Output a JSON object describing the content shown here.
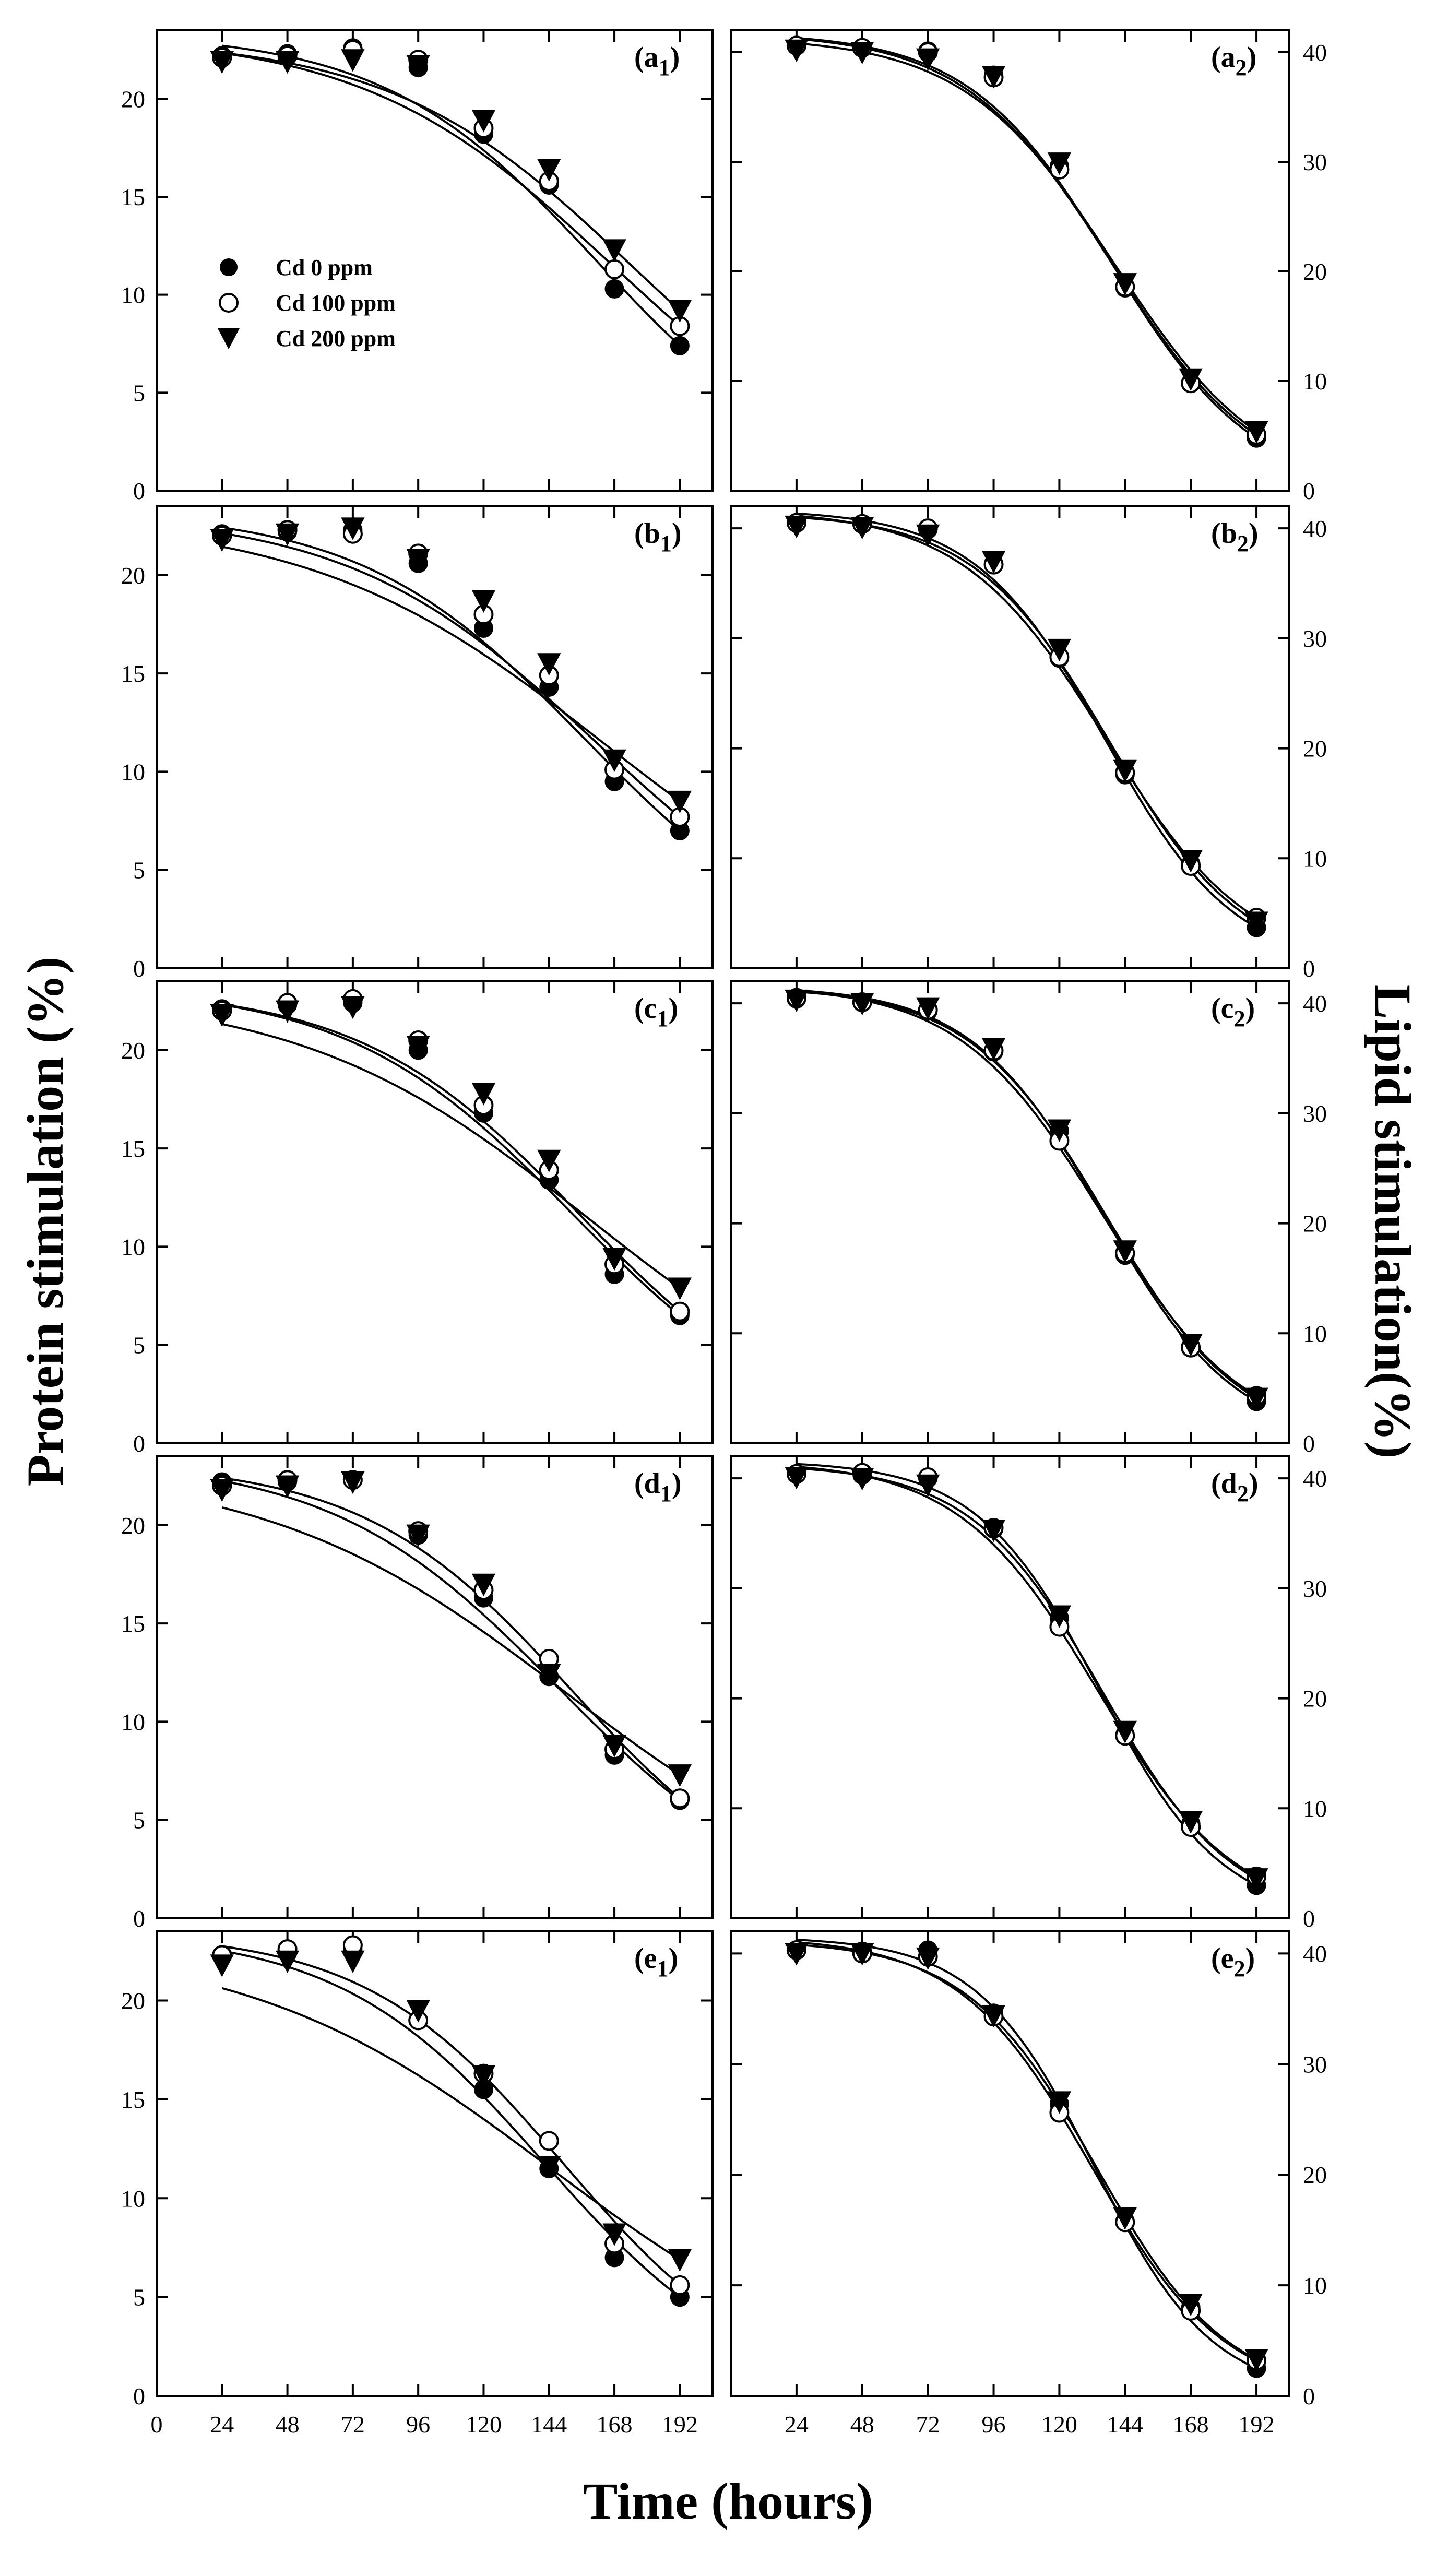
{
  "figure": {
    "y_label_left": "Protein stimulation (%)",
    "y_label_right": "Lipid stimulation(%)",
    "x_label": "Time (hours)"
  },
  "legend": {
    "entries": [
      {
        "label": "Cd 0 ppm",
        "marker": "filled-circle"
      },
      {
        "label": "Cd 100 ppm",
        "marker": "open-circle"
      },
      {
        "label": "Cd 200 ppm",
        "marker": "filled-triangle-down"
      }
    ]
  },
  "chart_data": [
    {
      "id": "a1",
      "panel_letter": "a",
      "panel_index": "1",
      "type": "scatter",
      "side": "protein",
      "xlim": [
        0,
        204
      ],
      "ylim": [
        0,
        23.5
      ],
      "x_ticks": [
        0,
        24,
        48,
        72,
        96,
        120,
        144,
        168,
        192
      ],
      "y_ticks": [
        0,
        5,
        10,
        15,
        20
      ],
      "x": [
        24,
        48,
        72,
        96,
        120,
        144,
        168,
        192
      ],
      "series": [
        {
          "name": "Cd 0 ppm",
          "values": [
            22.2,
            22.3,
            22.6,
            21.6,
            18.2,
            15.6,
            10.3,
            7.4
          ]
        },
        {
          "name": "Cd 100 ppm",
          "values": [
            22.1,
            22.2,
            22.5,
            22.0,
            18.5,
            15.8,
            11.3,
            8.4
          ]
        },
        {
          "name": "Cd 200 ppm",
          "values": [
            21.9,
            21.9,
            22.0,
            21.7,
            18.9,
            16.4,
            12.3,
            9.2
          ]
        }
      ]
    },
    {
      "id": "a2",
      "panel_letter": "a",
      "panel_index": "2",
      "type": "scatter",
      "side": "lipid",
      "xlim": [
        0,
        204
      ],
      "ylim": [
        0,
        42
      ],
      "x_ticks": [
        24,
        48,
        72,
        96,
        120,
        144,
        168,
        192
      ],
      "y_ticks": [
        0,
        10,
        20,
        30,
        40
      ],
      "x": [
        24,
        48,
        72,
        96,
        120,
        144,
        168,
        192
      ],
      "series": [
        {
          "name": "Cd 0 ppm",
          "values": [
            40.6,
            40.4,
            40.1,
            37.9,
            29.6,
            18.5,
            9.8,
            4.8
          ]
        },
        {
          "name": "Cd 100 ppm",
          "values": [
            40.6,
            40.4,
            40.0,
            37.7,
            29.3,
            18.6,
            9.8,
            5.1
          ]
        },
        {
          "name": "Cd 200 ppm",
          "values": [
            40.2,
            40.0,
            39.4,
            37.8,
            29.9,
            18.9,
            10.2,
            5.4
          ]
        }
      ]
    },
    {
      "id": "b1",
      "panel_letter": "b",
      "panel_index": "1",
      "type": "scatter",
      "side": "protein",
      "xlim": [
        0,
        204
      ],
      "ylim": [
        0,
        23.5
      ],
      "x_ticks": [
        0,
        24,
        48,
        72,
        96,
        120,
        144,
        168,
        192
      ],
      "y_ticks": [
        0,
        5,
        10,
        15,
        20
      ],
      "x": [
        24,
        48,
        72,
        96,
        120,
        144,
        168,
        192
      ],
      "series": [
        {
          "name": "Cd 0 ppm",
          "values": [
            22.1,
            22.2,
            22.3,
            20.6,
            17.3,
            14.3,
            9.5,
            7.0
          ]
        },
        {
          "name": "Cd 100 ppm",
          "values": [
            22.0,
            22.3,
            22.1,
            21.1,
            18.0,
            14.9,
            10.1,
            7.7
          ]
        },
        {
          "name": "Cd 200 ppm",
          "values": [
            21.8,
            22.1,
            22.4,
            20.8,
            18.7,
            15.5,
            10.6,
            8.5
          ]
        }
      ]
    },
    {
      "id": "b2",
      "panel_letter": "b",
      "panel_index": "2",
      "type": "scatter",
      "side": "lipid",
      "xlim": [
        0,
        204
      ],
      "ylim": [
        0,
        42
      ],
      "x_ticks": [
        24,
        48,
        72,
        96,
        120,
        144,
        168,
        192
      ],
      "y_ticks": [
        0,
        10,
        20,
        30,
        40
      ],
      "x": [
        24,
        48,
        72,
        96,
        120,
        144,
        168,
        192
      ],
      "series": [
        {
          "name": "Cd 0 ppm",
          "values": [
            40.5,
            40.4,
            39.9,
            36.8,
            28.2,
            17.6,
            9.5,
            3.7
          ]
        },
        {
          "name": "Cd 100 ppm",
          "values": [
            40.5,
            40.4,
            40.0,
            36.7,
            28.3,
            17.8,
            9.3,
            4.6
          ]
        },
        {
          "name": "Cd 200 ppm",
          "values": [
            40.2,
            40.1,
            39.4,
            37.0,
            29.0,
            18.0,
            9.8,
            4.2
          ]
        }
      ]
    },
    {
      "id": "c1",
      "panel_letter": "c",
      "panel_index": "1",
      "type": "scatter",
      "side": "protein",
      "xlim": [
        0,
        204
      ],
      "ylim": [
        0,
        23.5
      ],
      "x_ticks": [
        0,
        24,
        48,
        72,
        96,
        120,
        144,
        168,
        192
      ],
      "y_ticks": [
        0,
        5,
        10,
        15,
        20
      ],
      "x": [
        24,
        48,
        72,
        96,
        120,
        144,
        168,
        192
      ],
      "series": [
        {
          "name": "Cd 0 ppm",
          "values": [
            22.1,
            22.3,
            22.4,
            20.0,
            16.8,
            13.4,
            8.6,
            6.5
          ]
        },
        {
          "name": "Cd 100 ppm",
          "values": [
            22.0,
            22.4,
            22.6,
            20.5,
            17.2,
            13.9,
            9.1,
            6.7
          ]
        },
        {
          "name": "Cd 200 ppm",
          "values": [
            21.8,
            22.0,
            22.2,
            20.2,
            17.8,
            14.4,
            9.4,
            7.9
          ]
        }
      ]
    },
    {
      "id": "c2",
      "panel_letter": "c",
      "panel_index": "2",
      "type": "scatter",
      "side": "lipid",
      "xlim": [
        0,
        204
      ],
      "ylim": [
        0,
        42
      ],
      "x_ticks": [
        24,
        48,
        72,
        96,
        120,
        144,
        168,
        192
      ],
      "y_ticks": [
        0,
        10,
        20,
        30,
        40
      ],
      "x": [
        24,
        48,
        72,
        96,
        120,
        144,
        168,
        192
      ],
      "series": [
        {
          "name": "Cd 0 ppm",
          "values": [
            40.4,
            40.1,
            39.3,
            35.6,
            28.4,
            17.1,
            8.8,
            3.8
          ]
        },
        {
          "name": "Cd 100 ppm",
          "values": [
            40.5,
            40.1,
            39.4,
            35.7,
            27.5,
            17.3,
            8.7,
            4.3
          ]
        },
        {
          "name": "Cd 200 ppm",
          "values": [
            40.3,
            40.0,
            39.6,
            35.9,
            28.5,
            17.5,
            9.0,
            4.1
          ]
        }
      ]
    },
    {
      "id": "d1",
      "panel_letter": "d",
      "panel_index": "1",
      "type": "scatter",
      "side": "protein",
      "xlim": [
        0,
        204
      ],
      "ylim": [
        0,
        23.5
      ],
      "x_ticks": [
        0,
        24,
        48,
        72,
        96,
        120,
        144,
        168,
        192
      ],
      "y_ticks": [
        0,
        5,
        10,
        15,
        20
      ],
      "x": [
        24,
        48,
        72,
        96,
        120,
        144,
        168,
        192
      ],
      "series": [
        {
          "name": "Cd 0 ppm",
          "values": [
            22.2,
            22.2,
            22.3,
            19.5,
            16.3,
            12.3,
            8.3,
            6.0
          ]
        },
        {
          "name": "Cd 100 ppm",
          "values": [
            22.0,
            22.3,
            22.3,
            19.7,
            16.7,
            13.2,
            8.6,
            6.1
          ]
        },
        {
          "name": "Cd 200 ppm",
          "values": [
            21.8,
            22.0,
            22.2,
            19.5,
            17.0,
            12.4,
            8.8,
            7.3
          ]
        }
      ]
    },
    {
      "id": "d2",
      "panel_letter": "d",
      "panel_index": "2",
      "type": "scatter",
      "side": "lipid",
      "xlim": [
        0,
        204
      ],
      "ylim": [
        0,
        42
      ],
      "x_ticks": [
        24,
        48,
        72,
        96,
        120,
        144,
        168,
        192
      ],
      "y_ticks": [
        0,
        10,
        20,
        30,
        40
      ],
      "x": [
        24,
        48,
        72,
        96,
        120,
        144,
        168,
        192
      ],
      "series": [
        {
          "name": "Cd 0 ppm",
          "values": [
            40.4,
            40.3,
            40.0,
            35.4,
            27.3,
            16.7,
            8.6,
            3.0
          ]
        },
        {
          "name": "Cd 100 ppm",
          "values": [
            40.4,
            40.5,
            40.1,
            35.5,
            26.5,
            16.6,
            8.3,
            3.8
          ]
        },
        {
          "name": "Cd 200 ppm",
          "values": [
            40.1,
            40.0,
            39.4,
            35.3,
            27.5,
            17.0,
            8.8,
            3.6
          ]
        }
      ]
    },
    {
      "id": "e1",
      "panel_letter": "e",
      "panel_index": "1",
      "type": "scatter",
      "side": "protein",
      "xlim": [
        0,
        204
      ],
      "ylim": [
        0,
        23.5
      ],
      "x_ticks": [
        0,
        24,
        48,
        72,
        96,
        120,
        144,
        168,
        192
      ],
      "y_ticks": [
        0,
        5,
        10,
        15,
        20
      ],
      "x": [
        24,
        48,
        72,
        96,
        120,
        144,
        168,
        192
      ],
      "series": [
        {
          "name": "Cd 0 ppm",
          "values": [
            22.3,
            22.4,
            22.6,
            19.0,
            15.5,
            11.5,
            7.0,
            5.0
          ]
        },
        {
          "name": "Cd 100 ppm",
          "values": [
            22.3,
            22.6,
            22.8,
            19.0,
            16.3,
            12.9,
            7.7,
            5.6
          ]
        },
        {
          "name": "Cd 200 ppm",
          "values": [
            21.8,
            22.0,
            22.0,
            19.5,
            16.2,
            11.6,
            8.2,
            6.9
          ]
        }
      ]
    },
    {
      "id": "e2",
      "panel_letter": "e",
      "panel_index": "2",
      "type": "scatter",
      "side": "lipid",
      "xlim": [
        0,
        204
      ],
      "ylim": [
        0,
        42
      ],
      "x_ticks": [
        24,
        48,
        72,
        96,
        120,
        144,
        168,
        192
      ],
      "y_ticks": [
        0,
        10,
        20,
        30,
        40
      ],
      "x": [
        24,
        48,
        72,
        96,
        120,
        144,
        168,
        192
      ],
      "series": [
        {
          "name": "Cd 0 ppm",
          "values": [
            40.3,
            40.2,
            40.3,
            34.6,
            26.4,
            15.8,
            8.0,
            2.5
          ]
        },
        {
          "name": "Cd 100 ppm",
          "values": [
            40.3,
            40.0,
            39.7,
            34.3,
            25.6,
            15.7,
            7.7,
            3.2
          ]
        },
        {
          "name": "Cd 200 ppm",
          "values": [
            40.0,
            40.0,
            39.6,
            34.4,
            26.6,
            16.1,
            8.3,
            3.3
          ]
        }
      ]
    }
  ]
}
